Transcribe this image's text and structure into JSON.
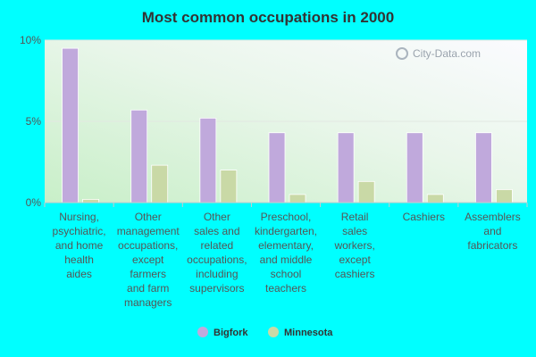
{
  "chart_data": {
    "type": "bar",
    "title": "Most common occupations in 2000",
    "categories": [
      [
        "Nursing,",
        "psychiatric,",
        "and home",
        "health",
        "aides"
      ],
      [
        "Other",
        "management",
        "occupations,",
        "except",
        "farmers",
        "and farm",
        "managers"
      ],
      [
        "Other",
        "sales and",
        "related",
        "occupations,",
        "including",
        "supervisors"
      ],
      [
        "Preschool,",
        "kindergarten,",
        "elementary,",
        "and middle",
        "school",
        "teachers"
      ],
      [
        "Retail",
        "sales",
        "workers,",
        "except",
        "cashiers"
      ],
      [
        "Cashiers"
      ],
      [
        "Assemblers",
        "and",
        "fabricators"
      ]
    ],
    "series": [
      {
        "name": "Bigfork",
        "color": "#c0a9dc",
        "values": [
          9.5,
          5.7,
          5.2,
          4.3,
          4.3,
          4.3,
          4.3
        ]
      },
      {
        "name": "Minnesota",
        "color": "#c9d9a6",
        "values": [
          0.2,
          2.3,
          2.0,
          0.5,
          1.3,
          0.5,
          0.8
        ]
      }
    ],
    "yticks": [
      "0%",
      "5%",
      "10%"
    ],
    "ytick_values": [
      0,
      5,
      10
    ],
    "ylim": [
      0,
      10
    ],
    "xlabel": "",
    "ylabel": "",
    "legend": "bottom-center",
    "grid": true
  },
  "watermark": "City-Data.com"
}
